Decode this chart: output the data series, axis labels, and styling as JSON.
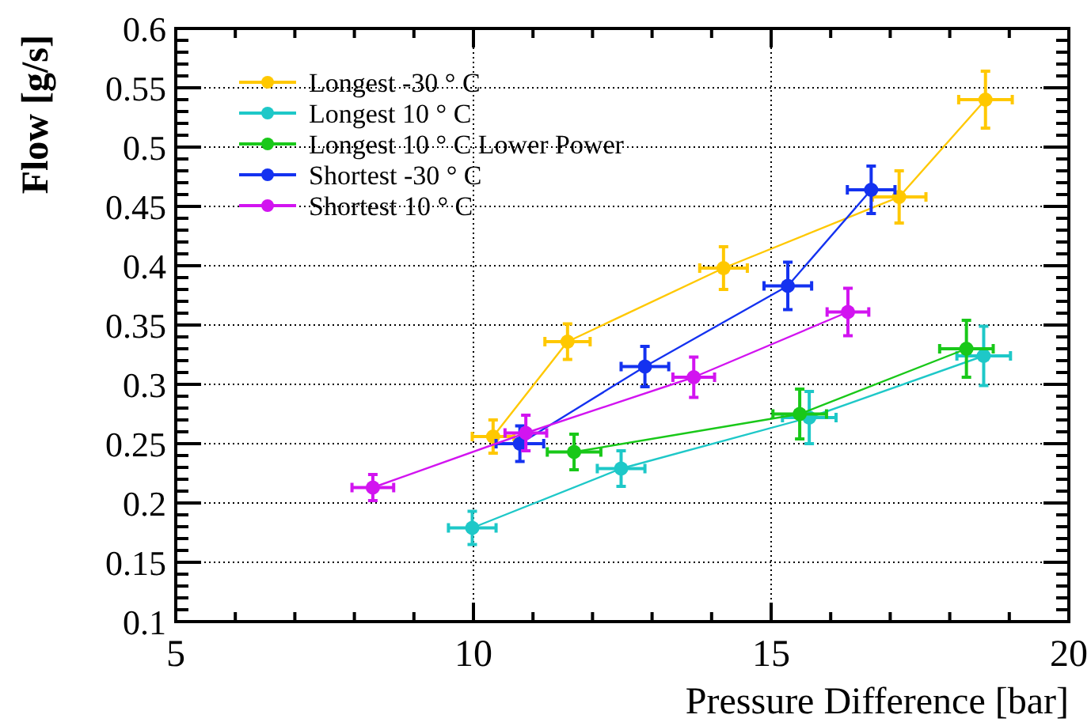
{
  "chart_data": {
    "type": "line",
    "xlabel": "Pressure Difference [bar]",
    "ylabel": "Flow [g/s]",
    "xlim": [
      5,
      20
    ],
    "ylim": [
      0.1,
      0.6
    ],
    "xticks": [
      5,
      10,
      15,
      20
    ],
    "yticks": [
      0.1,
      0.15,
      0.2,
      0.25,
      0.3,
      0.35,
      0.4,
      0.45,
      0.5,
      0.55,
      0.6
    ],
    "grid": true,
    "legend": "top left",
    "marker": "circle",
    "line_style": "solid",
    "series": [
      {
        "name": "Longest -30 ° C",
        "color": "#ffc800",
        "x": [
          10.33,
          11.58,
          14.2,
          17.15,
          18.6
        ],
        "values": [
          0.256,
          0.336,
          0.398,
          0.458,
          0.54
        ],
        "errors": [
          0.014,
          0.015,
          0.018,
          0.022,
          0.024
        ],
        "xerrors": [
          0.35,
          0.38,
          0.4,
          0.45,
          0.45
        ]
      },
      {
        "name": "Longest 10 ° C",
        "color": "#1ec8c8",
        "x": [
          9.98,
          12.48,
          15.64,
          18.57
        ],
        "values": [
          0.179,
          0.229,
          0.272,
          0.324
        ],
        "errors": [
          0.014,
          0.015,
          0.022,
          0.025
        ],
        "xerrors": [
          0.4,
          0.4,
          0.45,
          0.45
        ]
      },
      {
        "name": "Longest 10 ° C Lower Power",
        "color": "#19c819",
        "x": [
          11.69,
          15.48,
          18.28
        ],
        "values": [
          0.243,
          0.275,
          0.33
        ],
        "errors": [
          0.015,
          0.021,
          0.024
        ],
        "xerrors": [
          0.45,
          0.45,
          0.45
        ]
      },
      {
        "name": "Shortest -30 ° C",
        "color": "#1432f0",
        "x": [
          10.78,
          12.88,
          15.28,
          16.68
        ],
        "values": [
          0.25,
          0.315,
          0.383,
          0.464
        ],
        "errors": [
          0.015,
          0.017,
          0.02,
          0.02
        ],
        "xerrors": [
          0.4,
          0.4,
          0.4,
          0.4
        ]
      },
      {
        "name": "Shortest 10 ° C",
        "color": "#d214f0",
        "x": [
          8.31,
          10.88,
          13.7,
          16.29
        ],
        "values": [
          0.213,
          0.259,
          0.306,
          0.361
        ],
        "errors": [
          0.011,
          0.015,
          0.017,
          0.02
        ],
        "xerrors": [
          0.35,
          0.35,
          0.35,
          0.35
        ]
      }
    ]
  }
}
